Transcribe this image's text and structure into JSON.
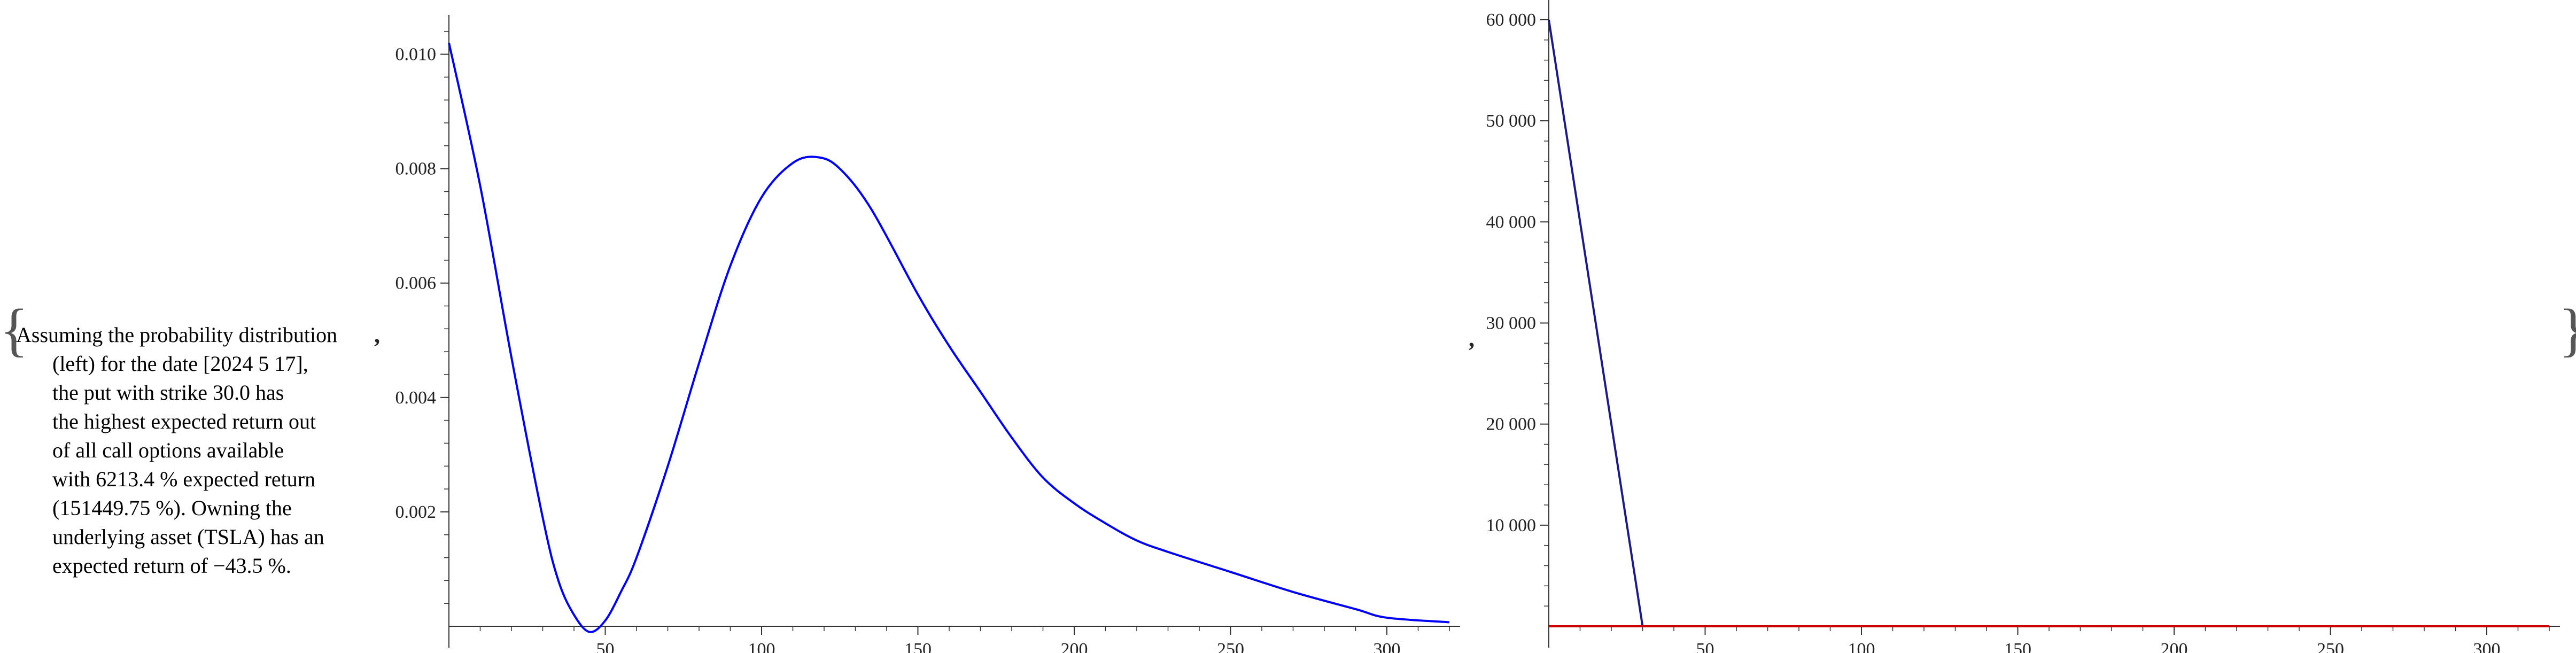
{
  "text": {
    "brace_open": "{",
    "brace_close": "}",
    "comma": ",",
    "lines": [
      "Assuming the probability distribution",
      "(left) for the date [2024 5 17],",
      "the put with strike 30.0 has",
      "the highest expected return out",
      "of all call options available",
      "with 6213.4 % expected return",
      "(151449.75 %). Owning the",
      "underlying asset (TSLA) has an",
      "expected return of −43.5 %."
    ]
  },
  "chart_data": [
    {
      "type": "line",
      "xlim": [
        0,
        320
      ],
      "ylim": [
        0,
        0.0105
      ],
      "xticks": [
        "50",
        "100",
        "150",
        "200",
        "250",
        "300"
      ],
      "yticks": [
        "0.002",
        "0.004",
        "0.006",
        "0.008",
        "0.010"
      ],
      "color": "#0000ff",
      "series": [
        {
          "x": [
            0,
            10,
            20,
            30,
            35,
            40,
            45,
            50,
            55,
            60,
            70,
            80,
            90,
            100,
            110,
            118,
            125,
            135,
            150,
            160,
            170,
            180,
            190,
            200,
            210,
            220,
            230,
            250,
            270,
            290,
            300,
            320
          ],
          "y": [
            0.0102,
            0.0077,
            0.0047,
            0.0019,
            0.0008,
            0.0002,
            -0.0001,
            0.0001,
            0.0006,
            0.0012,
            0.0028,
            0.0046,
            0.0063,
            0.0075,
            0.0081,
            0.0082,
            0.008,
            0.0073,
            0.0058,
            0.0049,
            0.0041,
            0.0033,
            0.0026,
            0.00215,
            0.0018,
            0.0015,
            0.0013,
            0.00095,
            0.0006,
            0.0003,
            0.00015,
            7e-05
          ]
        }
      ]
    },
    {
      "type": "line",
      "xlim": [
        0,
        320
      ],
      "ylim": [
        0,
        61000
      ],
      "xticks": [
        "50",
        "100",
        "150",
        "200",
        "250",
        "300"
      ],
      "yticks": [
        "10 000",
        "20 000",
        "30 000",
        "40 000",
        "50 000",
        "60 000"
      ],
      "series": [
        {
          "color": "#1a1a8c",
          "x": [
            0,
            30,
            320
          ],
          "y": [
            60000,
            0,
            0
          ]
        },
        {
          "color": "#cc0000",
          "x": [
            0,
            320
          ],
          "y": [
            0,
            0
          ]
        }
      ]
    }
  ]
}
